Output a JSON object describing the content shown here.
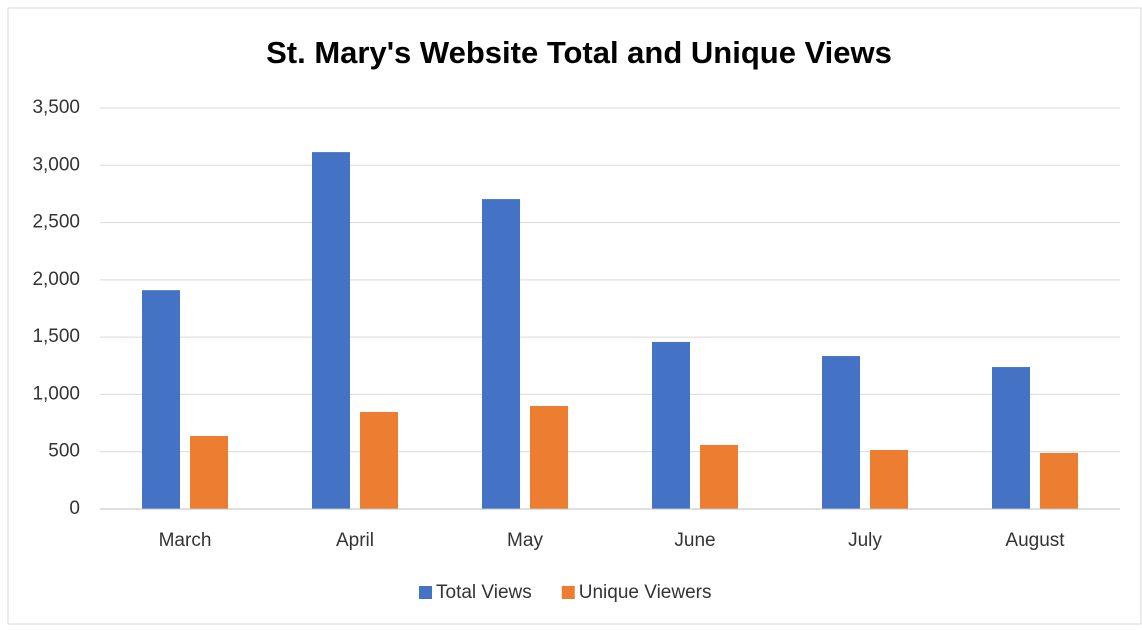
{
  "chart_data": {
    "type": "bar",
    "title": "St. Mary's Website Total and Unique Views",
    "categories": [
      "March",
      "April",
      "May",
      "June",
      "July",
      "August"
    ],
    "series": [
      {
        "name": "Total Views",
        "color": "#4472c4",
        "values": [
          1910,
          3115,
          2705,
          1458,
          1335,
          1239
        ]
      },
      {
        "name": "Unique Viewers",
        "color": "#ed7d31",
        "values": [
          637,
          847,
          899,
          559,
          515,
          489
        ]
      }
    ],
    "ylim": [
      0,
      3500
    ],
    "yticks": [
      0,
      500,
      {
        "value": 1000,
        "label": "1,000"
      },
      {
        "value": 1500,
        "label": "1,500"
      },
      {
        "value": 2000,
        "label": "2,000"
      },
      {
        "value": 2500,
        "label": "2,500"
      },
      {
        "value": 3000,
        "label": "3,000"
      },
      {
        "value": 3500,
        "label": "3,500"
      }
    ],
    "grid": true,
    "legend": "bottom"
  }
}
